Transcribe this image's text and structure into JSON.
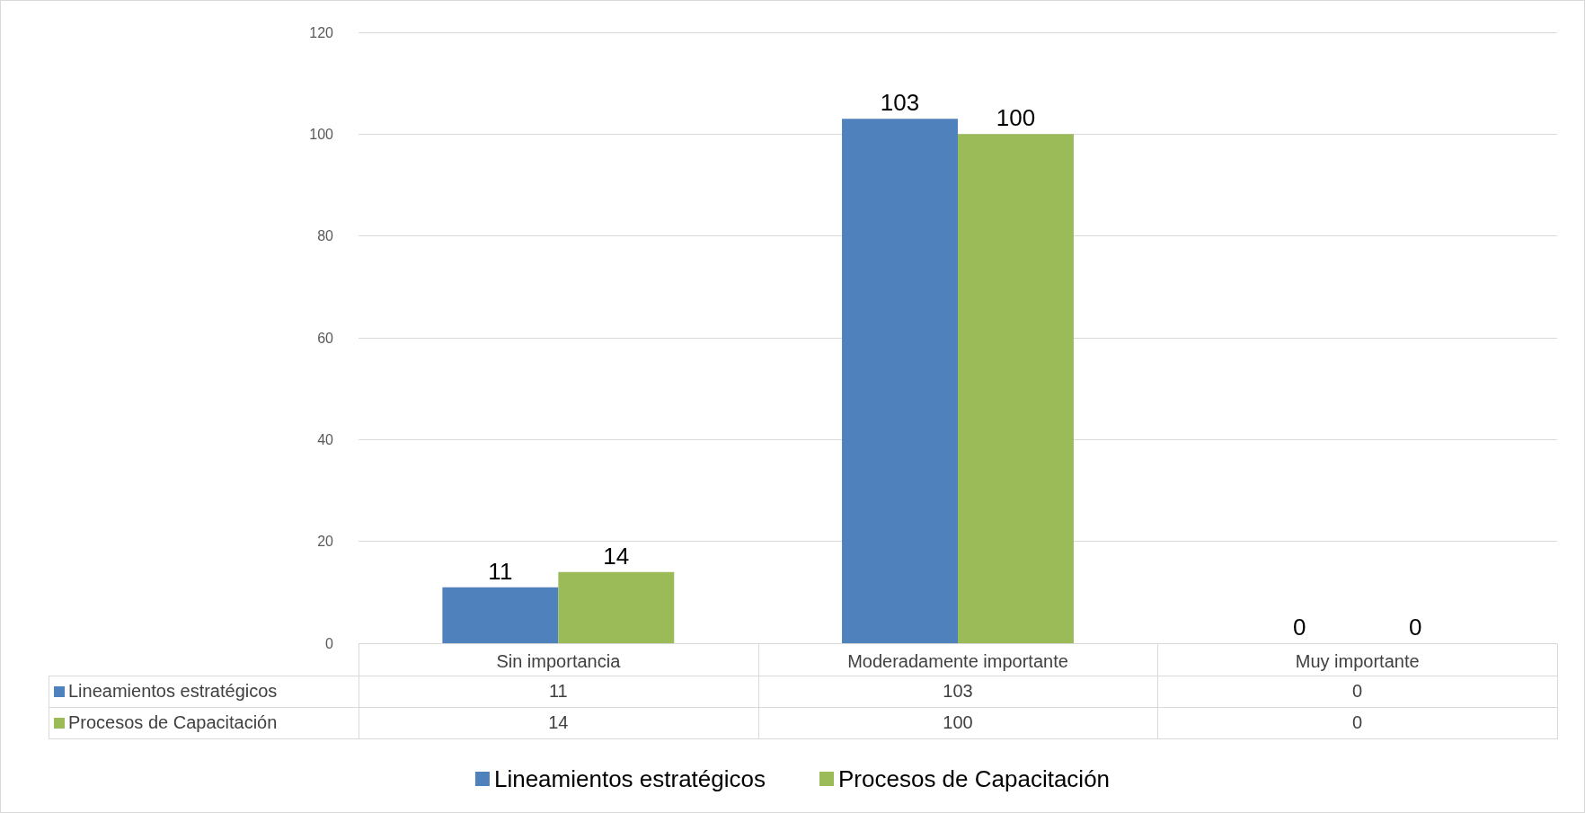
{
  "chart_data": {
    "type": "bar",
    "categories": [
      "Sin importancia",
      "Moderadamente importante",
      "Muy importante"
    ],
    "series": [
      {
        "name": "Lineamientos estratégicos",
        "color": "#4f81bd",
        "values": [
          11,
          103,
          0
        ],
        "value_labels": [
          "11",
          "103",
          "0"
        ]
      },
      {
        "name": "Procesos de Capacitación",
        "color": "#9bbb59",
        "values": [
          14,
          100,
          0
        ],
        "value_labels": [
          "14",
          "100",
          "0"
        ]
      }
    ],
    "ylim": [
      0,
      120
    ],
    "yticks": [
      0,
      20,
      40,
      60,
      80,
      100,
      120
    ],
    "grid": "y",
    "legend": "bottom"
  }
}
